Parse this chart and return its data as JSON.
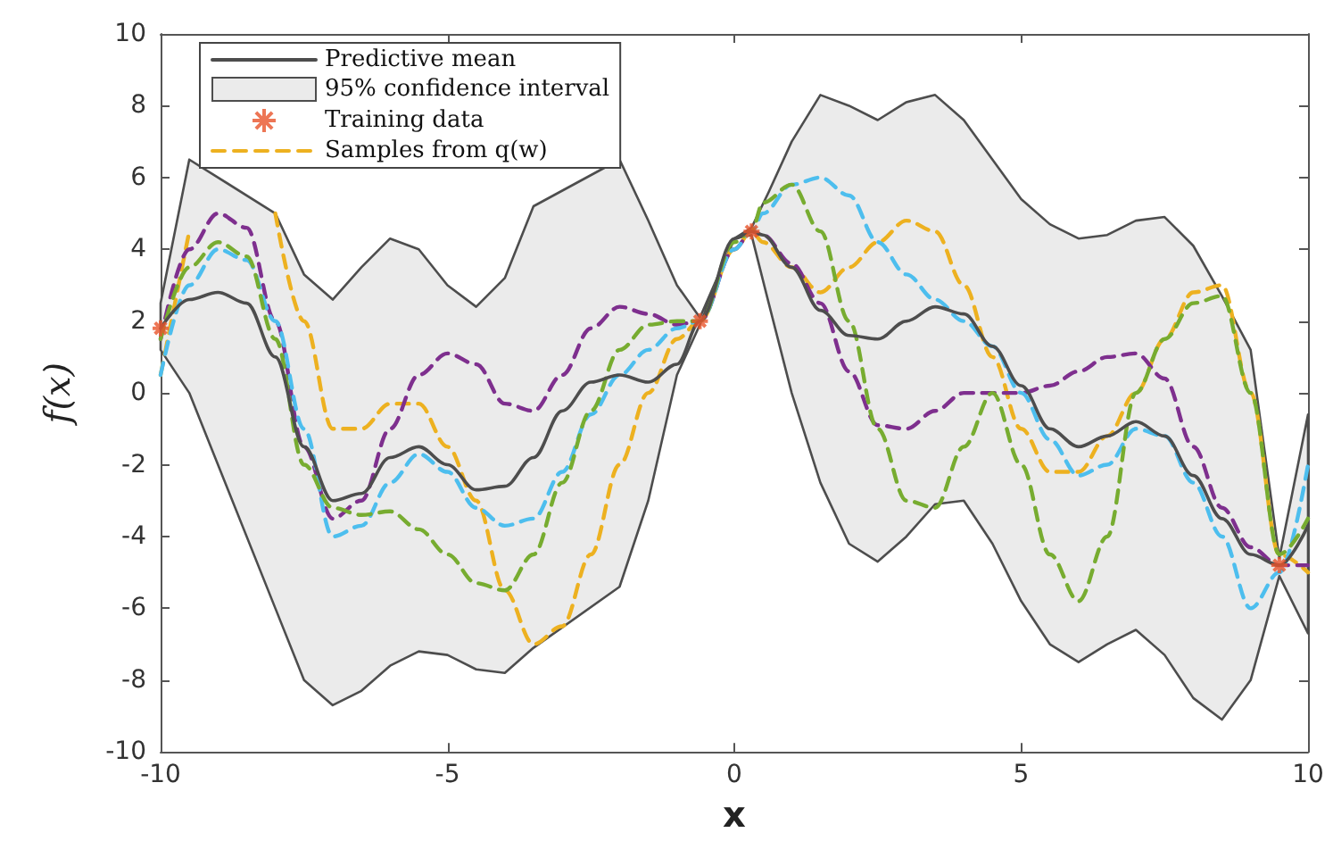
{
  "chart_data": {
    "type": "line",
    "xlabel": "x",
    "ylabel": "f(x)",
    "xlim": [
      -10,
      10
    ],
    "xticks": [
      -10,
      -5,
      0,
      5,
      10
    ],
    "ylim": [
      -10,
      10
    ],
    "yticks": [
      -10,
      -8,
      -6,
      -4,
      -2,
      0,
      2,
      4,
      6,
      8,
      10
    ],
    "grid": false,
    "legend": "top left",
    "line_style": "solid",
    "series": [
      {
        "name": "Predictive mean",
        "color": "#4d4d4d",
        "x": [
          -10,
          -9.5,
          -9,
          -8.5,
          -8,
          -7.5,
          -7,
          -6.5,
          -6,
          -5.5,
          -5,
          -4.5,
          -4,
          -3.5,
          -3,
          -2.5,
          -2,
          -1.5,
          -1,
          -0.6,
          0,
          0.3,
          0.5,
          1,
          1.5,
          2,
          2.5,
          3,
          3.5,
          4,
          4.5,
          5,
          5.5,
          6,
          6.5,
          7,
          7.5,
          8,
          8.5,
          9,
          9.5,
          10
        ],
        "values": [
          1.8,
          2.6,
          2.8,
          2.5,
          1,
          -1.5,
          -3,
          -2.8,
          -1.8,
          -1.5,
          -2,
          -2.7,
          -2.6,
          -1.8,
          -0.5,
          0.3,
          0.5,
          0.3,
          0.8,
          2.0,
          4.3,
          4.5,
          4.4,
          3.5,
          2.3,
          1.6,
          1.5,
          2.0,
          2.4,
          2.2,
          1.3,
          0.2,
          -1.0,
          -1.5,
          -1.2,
          -0.8,
          -1.2,
          -2.3,
          -3.5,
          -4.5,
          -4.8,
          -3.7
        ]
      },
      {
        "name": "95% confidence interval",
        "type": "area",
        "color": "#ebebeb",
        "x": [
          -10,
          -9.5,
          -8,
          -7.5,
          -7,
          -6.5,
          -6,
          -5.5,
          -5,
          -4.5,
          -4,
          -3.5,
          -2,
          -1.5,
          -1,
          -0.6,
          0,
          0.3,
          0.6,
          1,
          1.5,
          2,
          2.5,
          3,
          3.5,
          4,
          4.5,
          5,
          5.5,
          6,
          6.5,
          7,
          7.5,
          8,
          8.5,
          9,
          9.5,
          10
        ],
        "values": [
          null,
          null,
          null,
          null,
          null,
          null,
          null,
          null,
          null,
          null,
          null,
          null,
          null,
          null,
          null,
          null,
          null,
          null,
          null,
          null,
          null,
          null,
          null,
          null,
          null,
          null,
          null,
          null,
          null,
          null,
          null,
          null,
          null,
          null,
          null,
          null,
          null,
          null
        ],
        "lower": [
          1.2,
          0,
          -6,
          -8,
          -8.7,
          -8.3,
          -7.6,
          -7.2,
          -7.3,
          -7.7,
          -7.8,
          -7.1,
          -5.4,
          -3,
          0.5,
          1.9,
          4.3,
          4.4,
          2.5,
          0,
          -2.5,
          -4.2,
          -4.7,
          -4.0,
          -3.1,
          -3.0,
          -4.2,
          -5.8,
          -7.0,
          -7.5,
          -7.0,
          -6.6,
          -7.3,
          -8.5,
          -9.1,
          -8.0,
          -5.1,
          -6.7
        ],
        "upper": [
          2.5,
          6.5,
          5.0,
          3.3,
          2.6,
          3.5,
          4.3,
          4.0,
          3.0,
          2.4,
          3.2,
          5.2,
          6.5,
          4.8,
          3.0,
          2.1,
          4.3,
          4.6,
          5.6,
          7.0,
          8.3,
          8.0,
          7.6,
          8.1,
          8.3,
          7.6,
          6.5,
          5.4,
          4.7,
          4.3,
          4.4,
          4.8,
          4.9,
          4.1,
          2.7,
          1.2,
          -4.6,
          -0.6
        ]
      },
      {
        "name": "Training data",
        "type": "scatter",
        "color": "#e8542a",
        "marker": "cross",
        "x": [
          -10,
          -0.6,
          0.3,
          9.5
        ],
        "values": [
          1.8,
          2.0,
          4.5,
          -4.8
        ]
      },
      {
        "name": "Samples from q(w)",
        "color": "#edb120",
        "line_style": "dashed",
        "x": [
          -10,
          -9.5,
          -9,
          -8.5,
          -8,
          -7.5,
          -7,
          -6.5,
          -6,
          -5.5,
          -5,
          -4.5,
          -4,
          -3.5,
          -3,
          -2.5,
          -2,
          -1.5,
          -1,
          -0.6,
          0,
          0.3,
          0.5,
          1,
          1.5,
          2,
          2.5,
          3,
          3.5,
          4,
          4.5,
          5,
          5.5,
          6,
          6.5,
          7,
          7.5,
          8,
          8.5,
          9,
          9.5,
          10
        ],
        "values": [
          0.5,
          4.5,
          null,
          null,
          5,
          2,
          -1,
          -1,
          -0.3,
          -0.3,
          -1.5,
          -3,
          -5.5,
          -7,
          -6.5,
          -4.5,
          -2,
          0,
          1.5,
          2,
          4,
          4.5,
          4.2,
          3.5,
          2.8,
          3.5,
          4.2,
          4.8,
          4.5,
          3,
          1,
          -1,
          -2.2,
          -2.2,
          -1.2,
          0,
          1.5,
          2.8,
          3,
          0,
          -4.5,
          -5
        ]
      },
      {
        "color": "#7e2f8e",
        "line_style": "dashed",
        "x": [
          -10,
          -9.5,
          -9,
          -8.5,
          -8,
          -7.5,
          -7,
          -6.5,
          -6,
          -5.5,
          -5,
          -4.5,
          -4,
          -3.5,
          -3,
          -2.5,
          -2,
          -1.5,
          -1,
          -0.6,
          0,
          0.3,
          0.5,
          1,
          1.5,
          2,
          2.5,
          3,
          3.5,
          4,
          4.5,
          5,
          5.5,
          6,
          6.5,
          7,
          7.5,
          8,
          8.5,
          9,
          9.5,
          10
        ],
        "values": [
          1.5,
          4,
          5,
          4.6,
          2,
          -1.5,
          -3.5,
          -3,
          -1,
          0.5,
          1.1,
          0.8,
          -0.3,
          -0.5,
          0.5,
          1.8,
          2.4,
          2.2,
          1.9,
          2,
          4,
          4.5,
          4.4,
          3.6,
          2.5,
          0.6,
          -0.9,
          -1,
          -0.5,
          0,
          0,
          0,
          0.2,
          0.6,
          1.0,
          1.1,
          0.4,
          -1.5,
          -3.2,
          -4.3,
          -4.8,
          -4.8
        ]
      },
      {
        "color": "#4dbeee",
        "line_style": "dashed",
        "x": [
          -10,
          -9.5,
          -9,
          -8.5,
          -8,
          -7.5,
          -7,
          -6.5,
          -6,
          -5.5,
          -5,
          -4.5,
          -4,
          -3.5,
          -3,
          -2.5,
          -2,
          -1.5,
          -1,
          -0.6,
          0,
          0.3,
          0.5,
          1,
          1.5,
          2,
          2.5,
          3,
          3.5,
          4,
          4.5,
          5,
          5.5,
          6,
          6.5,
          7,
          7.5,
          8,
          8.5,
          9,
          9.5,
          10
        ],
        "values": [
          0.5,
          3,
          4,
          3.7,
          2,
          -1,
          -4,
          -3.7,
          -2.5,
          -1.7,
          -2.2,
          -3.2,
          -3.7,
          -3.5,
          -2.2,
          -0.6,
          0.5,
          1.2,
          1.8,
          2,
          4,
          4.5,
          5,
          5.8,
          6.0,
          5.5,
          4.2,
          3.3,
          2.6,
          2,
          1.3,
          0,
          -1.3,
          -2.3,
          -2,
          -1,
          -1.2,
          -2.5,
          -4,
          -6,
          -5,
          -2
        ]
      },
      {
        "color": "#77ac30",
        "line_style": "dashed",
        "x": [
          -10,
          -9.5,
          -9,
          -8.5,
          -8,
          -7.5,
          -7,
          -6.5,
          -6,
          -5.5,
          -5,
          -4.5,
          -4,
          -3.5,
          -3,
          -2.5,
          -2,
          -1.5,
          -1,
          -0.6,
          0,
          0.3,
          0.5,
          1,
          1.5,
          2,
          2.5,
          3,
          3.5,
          4,
          4.5,
          5,
          5.5,
          6,
          6.5,
          7,
          7.5,
          8,
          8.5,
          9,
          9.5,
          10
        ],
        "values": [
          1.5,
          3.5,
          4.2,
          3.8,
          1.5,
          -2,
          -3.2,
          -3.4,
          -3.3,
          -3.8,
          -4.5,
          -5.3,
          -5.5,
          -4.5,
          -2.5,
          -0.5,
          1.2,
          1.9,
          2,
          2,
          4.2,
          4.5,
          5.3,
          5.8,
          4.5,
          2,
          -1,
          -3,
          -3.2,
          -1.5,
          0,
          -2,
          -4.5,
          -5.8,
          -4,
          0,
          1.5,
          2.5,
          2.7,
          0,
          -4.5,
          -3.5
        ]
      }
    ]
  }
}
